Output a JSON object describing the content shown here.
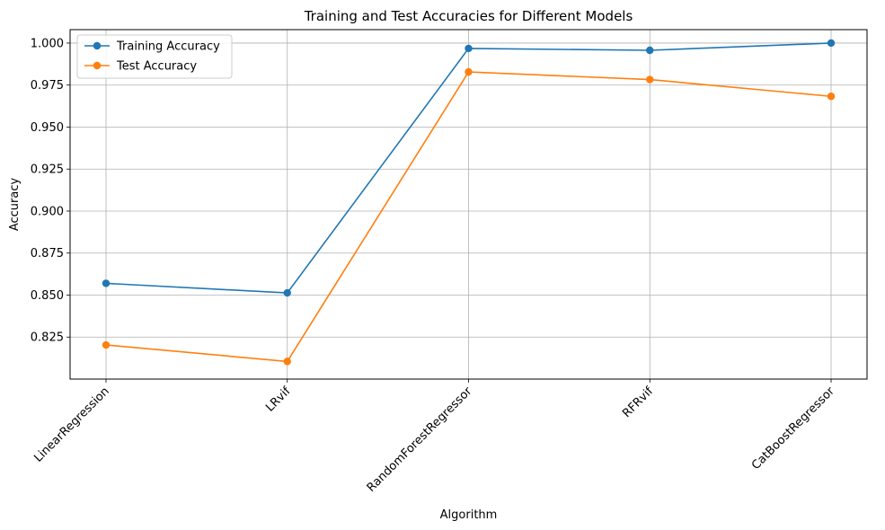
{
  "chart_data": {
    "type": "line",
    "title": "Training and Test Accuracies for Different Models",
    "xlabel": "Algorithm",
    "ylabel": "Accuracy",
    "categories": [
      "LinearRegression",
      "LRvif",
      "RandomForestRegressor",
      "RFRvif",
      "CatBoostRegressor"
    ],
    "series": [
      {
        "name": "Training Accuracy",
        "color": "#1f77b4",
        "values": [
          0.857,
          0.8513,
          0.9968,
          0.9957,
          1.0
        ]
      },
      {
        "name": "Test Accuracy",
        "color": "#ff7f0e",
        "values": [
          0.8203,
          0.8105,
          0.9828,
          0.9783,
          0.9683
        ]
      }
    ],
    "ylim": [
      0.8,
      1.008
    ],
    "yticks": [
      0.825,
      0.85,
      0.875,
      0.9,
      0.925,
      0.95,
      0.975,
      1.0
    ],
    "ytick_labels": [
      "0.825",
      "0.850",
      "0.875",
      "0.900",
      "0.925",
      "0.950",
      "0.975",
      "1.000"
    ],
    "grid": true,
    "legend_position": "top-left"
  }
}
